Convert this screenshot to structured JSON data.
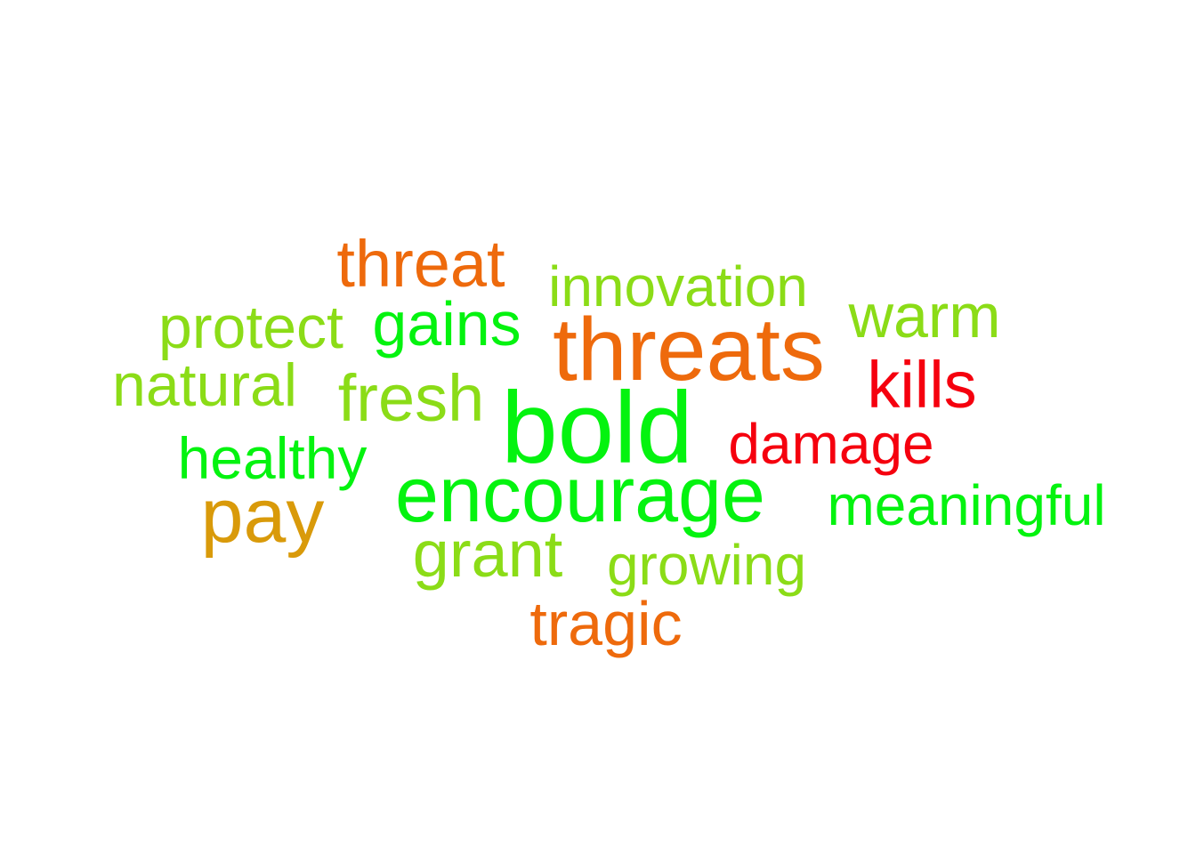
{
  "words": [
    {
      "id": "threat",
      "text": "threat",
      "color": "#ee6a0c"
    },
    {
      "id": "innovation",
      "text": "innovation",
      "color": "#8bdc17"
    },
    {
      "id": "warm",
      "text": "warm",
      "color": "#8bdc17"
    },
    {
      "id": "protect",
      "text": "protect",
      "color": "#8bdc17"
    },
    {
      "id": "gains",
      "text": "gains",
      "color": "#04f30f"
    },
    {
      "id": "threats",
      "text": "threats",
      "color": "#ee6a0c"
    },
    {
      "id": "kills",
      "text": "kills",
      "color": "#f5000e"
    },
    {
      "id": "natural",
      "text": "natural",
      "color": "#8bdc17"
    },
    {
      "id": "fresh",
      "text": "fresh",
      "color": "#8bdc17"
    },
    {
      "id": "bold",
      "text": "bold",
      "color": "#04f30f"
    },
    {
      "id": "damage",
      "text": "damage",
      "color": "#f5000e"
    },
    {
      "id": "healthy",
      "text": "healthy",
      "color": "#04f30f"
    },
    {
      "id": "encourage",
      "text": "encourage",
      "color": "#04f30f"
    },
    {
      "id": "pay",
      "text": "pay",
      "color": "#d99a0a"
    },
    {
      "id": "meaningful",
      "text": "meaningful",
      "color": "#04f30f"
    },
    {
      "id": "grant",
      "text": "grant",
      "color": "#8bdc17"
    },
    {
      "id": "growing",
      "text": "growing",
      "color": "#8bdc17"
    },
    {
      "id": "tragic",
      "text": "tragic",
      "color": "#ee6a0c"
    }
  ]
}
